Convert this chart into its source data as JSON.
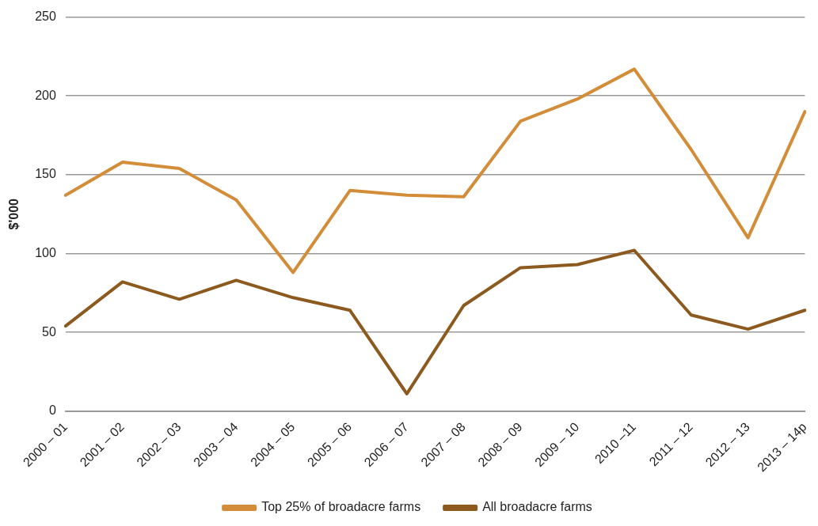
{
  "chart_data": {
    "type": "line",
    "ylabel": "$'000",
    "categories": [
      "2000 – 01",
      "2001 – 02",
      "2002 – 03",
      "2003 – 04",
      "2004 – 05",
      "2005 – 06",
      "2006 – 07",
      "2007 – 08",
      "2008 – 09",
      "2009 – 10",
      "2010 –11",
      "2011 – 12",
      "2012 – 13",
      "2013 – 14p"
    ],
    "series": [
      {
        "name": "Top 25% of broadacre farms",
        "color": "#d38c38",
        "values": [
          137,
          158,
          154,
          134,
          88,
          140,
          137,
          136,
          184,
          198,
          217,
          166,
          110,
          190
        ]
      },
      {
        "name": "All broadacre farms",
        "color": "#8c5a1e",
        "values": [
          54,
          82,
          71,
          83,
          72,
          64,
          11,
          67,
          91,
          93,
          102,
          61,
          52,
          64
        ]
      }
    ],
    "ylim": [
      0,
      250
    ],
    "yticks": [
      0,
      50,
      100,
      150,
      200,
      250
    ],
    "grid": "y",
    "legend": "bottom",
    "marker": "none",
    "line_style": "solid"
  }
}
